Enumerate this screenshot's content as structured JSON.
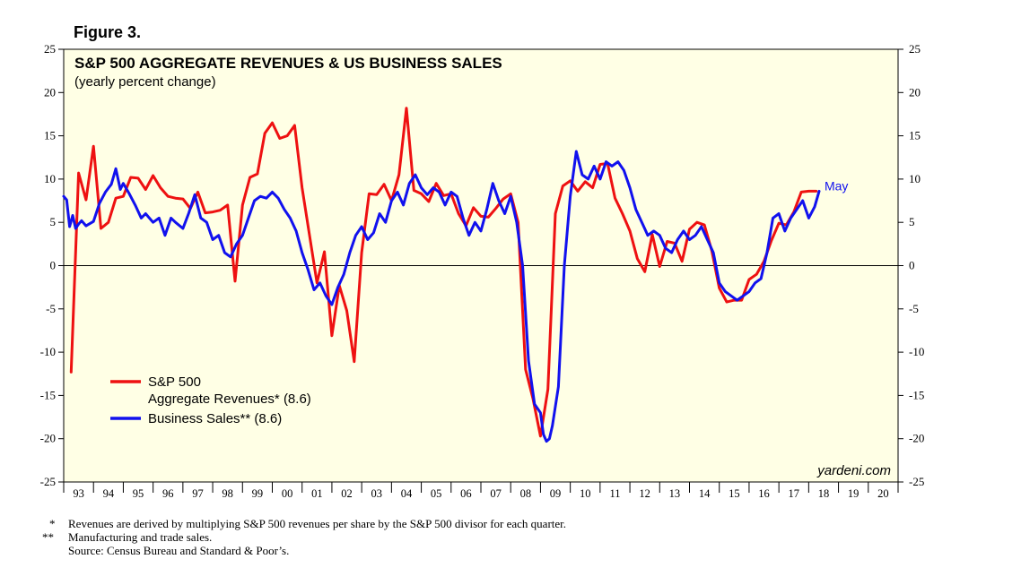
{
  "figure_label": "Figure 3.",
  "chart_data": {
    "type": "line",
    "title": "S&P 500 AGGREGATE REVENUES & US BUSINESS SALES",
    "subtitle": "(yearly percent change)",
    "ylim": [
      -25,
      25
    ],
    "yticks": [
      25,
      20,
      15,
      10,
      5,
      0,
      -5,
      -10,
      -15,
      -20,
      -25
    ],
    "ytick_labels": [
      "25",
      "20",
      "15",
      "10",
      "5",
      "0",
      "-5",
      "-10",
      "-15",
      "-20",
      "-25"
    ],
    "xlim": [
      1993,
      2021
    ],
    "x_tick_labels": [
      "93",
      "94",
      "95",
      "96",
      "97",
      "98",
      "99",
      "00",
      "01",
      "02",
      "03",
      "04",
      "05",
      "06",
      "07",
      "08",
      "09",
      "10",
      "11",
      "12",
      "13",
      "14",
      "15",
      "16",
      "17",
      "18",
      "19",
      "20"
    ],
    "zero_line": true,
    "watermark": "yardeni.com",
    "end_annotation": "May",
    "series": [
      {
        "name": "S&P 500",
        "name_line2": "Aggregate Revenues* (8.6)",
        "color": "#ee1111",
        "x": [
          1993.25,
          1993.5,
          1993.75,
          1994.0,
          1994.25,
          1994.5,
          1994.75,
          1995.0,
          1995.25,
          1995.5,
          1995.75,
          1996.0,
          1996.25,
          1996.5,
          1996.75,
          1997.0,
          1997.25,
          1997.5,
          1997.75,
          1998.0,
          1998.25,
          1998.5,
          1998.75,
          1999.0,
          1999.25,
          1999.5,
          1999.75,
          2000.0,
          2000.25,
          2000.5,
          2000.75,
          2001.0,
          2001.25,
          2001.5,
          2001.75,
          2002.0,
          2002.25,
          2002.5,
          2002.75,
          2003.0,
          2003.25,
          2003.5,
          2003.75,
          2004.0,
          2004.25,
          2004.5,
          2004.75,
          2005.0,
          2005.25,
          2005.5,
          2005.75,
          2006.0,
          2006.25,
          2006.5,
          2006.75,
          2007.0,
          2007.25,
          2007.5,
          2007.75,
          2008.0,
          2008.25,
          2008.5,
          2008.75,
          2009.0,
          2009.25,
          2009.5,
          2009.75,
          2010.0,
          2010.25,
          2010.5,
          2010.75,
          2011.0,
          2011.25,
          2011.5,
          2011.75,
          2012.0,
          2012.25,
          2012.5,
          2012.75,
          2013.0,
          2013.25,
          2013.5,
          2013.75,
          2014.0,
          2014.25,
          2014.5,
          2014.75,
          2015.0,
          2015.25,
          2015.5,
          2015.75,
          2016.0,
          2016.25,
          2016.5,
          2016.75,
          2017.0,
          2017.25,
          2017.5,
          2017.75,
          2018.0,
          2018.25
        ],
        "values": [
          -12.3,
          10.7,
          7.6,
          13.8,
          4.3,
          5.0,
          7.8,
          8.0,
          10.2,
          10.1,
          8.8,
          10.4,
          9.0,
          8.0,
          7.8,
          7.7,
          6.6,
          8.5,
          6.1,
          6.2,
          6.4,
          7.0,
          -1.8,
          7.0,
          10.2,
          10.6,
          15.3,
          16.5,
          14.7,
          15.0,
          16.2,
          9.0,
          3.5,
          -2.0,
          1.6,
          -8.1,
          -2.3,
          -5.2,
          -11.1,
          1.5,
          8.3,
          8.2,
          9.4,
          7.5,
          10.5,
          18.2,
          8.7,
          8.3,
          7.4,
          9.5,
          8.1,
          8.3,
          6.0,
          4.6,
          6.7,
          5.7,
          5.6,
          6.6,
          7.7,
          8.3,
          5.0,
          -12.0,
          -15.4,
          -19.7,
          -14.3,
          6.0,
          9.2,
          9.8,
          8.6,
          9.7,
          9.0,
          11.7,
          11.8,
          7.8,
          6.0,
          4.0,
          0.8,
          -0.7,
          3.6,
          -0.1,
          2.8,
          2.6,
          0.5,
          4.2,
          5.0,
          4.7,
          1.7,
          -2.6,
          -4.2,
          -4.0,
          -4.0,
          -1.6,
          -1.0,
          0.5,
          2.9,
          4.9,
          4.7,
          6.2,
          8.5,
          8.6,
          8.6
        ]
      },
      {
        "name": "Business Sales**",
        "name_suffix": "(8.6)",
        "color": "#1111ee",
        "x": [
          1993.0,
          1993.1,
          1993.2,
          1993.3,
          1993.4,
          1993.5,
          1993.6,
          1993.75,
          1994.0,
          1994.2,
          1994.4,
          1994.6,
          1994.75,
          1994.9,
          1995.0,
          1995.2,
          1995.4,
          1995.6,
          1995.75,
          1996.0,
          1996.2,
          1996.4,
          1996.6,
          1996.75,
          1997.0,
          1997.2,
          1997.4,
          1997.6,
          1997.8,
          1998.0,
          1998.2,
          1998.4,
          1998.6,
          1998.8,
          1999.0,
          1999.2,
          1999.4,
          1999.6,
          1999.8,
          2000.0,
          2000.2,
          2000.4,
          2000.6,
          2000.8,
          2001.0,
          2001.2,
          2001.4,
          2001.6,
          2001.8,
          2002.0,
          2002.2,
          2002.4,
          2002.6,
          2002.8,
          2003.0,
          2003.2,
          2003.4,
          2003.6,
          2003.8,
          2004.0,
          2004.2,
          2004.4,
          2004.6,
          2004.8,
          2005.0,
          2005.2,
          2005.4,
          2005.6,
          2005.8,
          2006.0,
          2006.2,
          2006.4,
          2006.6,
          2006.8,
          2007.0,
          2007.2,
          2007.4,
          2007.6,
          2007.8,
          2008.0,
          2008.2,
          2008.4,
          2008.6,
          2008.8,
          2009.0,
          2009.1,
          2009.2,
          2009.3,
          2009.4,
          2009.6,
          2009.8,
          2010.0,
          2010.2,
          2010.4,
          2010.6,
          2010.8,
          2011.0,
          2011.2,
          2011.4,
          2011.6,
          2011.8,
          2012.0,
          2012.2,
          2012.4,
          2012.6,
          2012.8,
          2013.0,
          2013.2,
          2013.4,
          2013.6,
          2013.8,
          2014.0,
          2014.2,
          2014.4,
          2014.6,
          2014.8,
          2015.0,
          2015.2,
          2015.4,
          2015.6,
          2015.8,
          2016.0,
          2016.2,
          2016.4,
          2016.6,
          2016.8,
          2017.0,
          2017.2,
          2017.4,
          2017.6,
          2017.8,
          2018.0,
          2018.2,
          2018.35
        ],
        "values": [
          8.0,
          7.6,
          4.5,
          5.8,
          4.3,
          4.8,
          5.2,
          4.6,
          5.1,
          7.2,
          8.5,
          9.4,
          11.2,
          8.8,
          9.5,
          8.3,
          7.0,
          5.5,
          6.0,
          5.0,
          5.5,
          3.5,
          5.5,
          5.0,
          4.3,
          6.1,
          8.2,
          5.5,
          5.0,
          3.0,
          3.5,
          1.5,
          1.0,
          2.5,
          3.5,
          5.5,
          7.5,
          8.0,
          7.8,
          8.5,
          7.8,
          6.5,
          5.5,
          4.0,
          1.5,
          -0.5,
          -2.8,
          -2.0,
          -3.5,
          -4.5,
          -2.5,
          -1.0,
          1.5,
          3.5,
          4.5,
          3.0,
          3.8,
          6.0,
          5.0,
          7.5,
          8.5,
          7.0,
          9.5,
          10.5,
          9.0,
          8.2,
          9.0,
          8.5,
          7.0,
          8.5,
          8.0,
          5.5,
          3.5,
          5.0,
          4.0,
          6.5,
          9.5,
          7.5,
          6.0,
          8.0,
          5.0,
          0.0,
          -11.0,
          -16.0,
          -17.0,
          -19.5,
          -20.3,
          -20.0,
          -18.5,
          -14.0,
          0.0,
          8.0,
          13.2,
          10.5,
          10.0,
          11.5,
          10.0,
          12.0,
          11.5,
          12.0,
          11.0,
          9.0,
          6.5,
          5.0,
          3.5,
          4.0,
          3.5,
          2.0,
          1.5,
          3.0,
          4.0,
          3.0,
          3.5,
          4.5,
          3.0,
          1.5,
          -2.0,
          -3.0,
          -3.5,
          -4.0,
          -3.5,
          -3.0,
          -2.0,
          -1.5,
          1.5,
          5.5,
          6.0,
          4.0,
          5.5,
          6.5,
          7.5,
          5.5,
          6.8,
          8.6
        ]
      }
    ]
  },
  "footnotes": [
    {
      "mark": "*",
      "text": "Revenues are derived by multiplying S&P 500 revenues per share by the S&P 500 divisor for each quarter."
    },
    {
      "mark": "**",
      "text": "Manufacturing and trade sales."
    },
    {
      "mark": "",
      "text": "Source: Census Bureau and Standard & Poor’s."
    }
  ]
}
